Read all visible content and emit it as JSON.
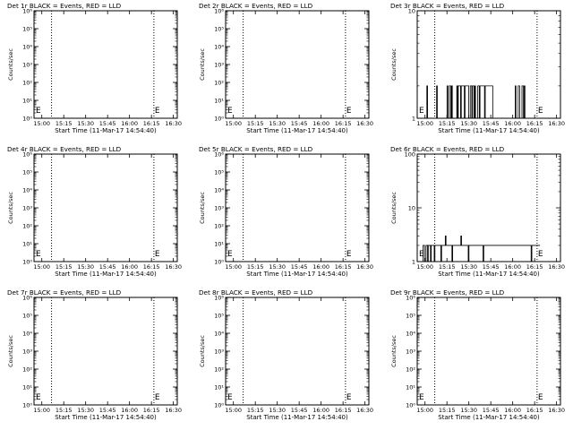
{
  "figure": {
    "xlabel": "Start Time (11-Mar-17 14:54:40)",
    "ylabel": "Counts/sec",
    "x_ticks": [
      "15:00",
      "15:15",
      "15:30",
      "15:45",
      "16:00",
      "16:15",
      "16:30"
    ],
    "x_range_minutes_from_start": [
      0,
      98
    ],
    "markers_minutes_from_start": [
      0,
      12,
      82
    ],
    "marker_text": "E"
  },
  "chart_data": [
    {
      "type": "line",
      "title": "Det 1r BLACK = Events, RED = LLD",
      "yscale": "log",
      "ylim": [
        1,
        10000
      ],
      "yticks": [
        "10⁰",
        "10¹",
        "10²",
        "10³",
        "10⁴",
        "10⁵",
        "10⁶"
      ],
      "series": [],
      "grid": false
    },
    {
      "type": "line",
      "title": "Det 2r BLACK = Events, RED = LLD",
      "yscale": "log",
      "ylim": [
        1,
        10000
      ],
      "yticks": [
        "10⁰",
        "10¹",
        "10²",
        "10³",
        "10⁴",
        "10⁵",
        "10⁶"
      ],
      "series": [],
      "grid": false
    },
    {
      "type": "line",
      "title": "Det 3r BLACK = Events, RED = LLD",
      "yscale": "log",
      "ylim": [
        1,
        10
      ],
      "yticks": [
        "1",
        "10"
      ],
      "series": [
        {
          "values_description": "events",
          "x_start_minutes": 3,
          "x_end_minutes": 86,
          "ymax": 2,
          "values": [
            1,
            1,
            1,
            1,
            1,
            1,
            1,
            2,
            1,
            1,
            1,
            1,
            1,
            1,
            1,
            1,
            1,
            1,
            1,
            1,
            2,
            1,
            1,
            1,
            1,
            1,
            1,
            1,
            1,
            1,
            1,
            1,
            1,
            1,
            2,
            1,
            1,
            2,
            2,
            1,
            2,
            1,
            1,
            1,
            1,
            1,
            1,
            2,
            1,
            2,
            2,
            2,
            1,
            2,
            2,
            2,
            2,
            1,
            2,
            2,
            2,
            2,
            2,
            1,
            1,
            2,
            2,
            1,
            2,
            2,
            1,
            2,
            1,
            1,
            1,
            2,
            2,
            1,
            2,
            2,
            2,
            2,
            2,
            2,
            1,
            2,
            2,
            2,
            2,
            2,
            2,
            2,
            2,
            2,
            2,
            1,
            1,
            1,
            1,
            1,
            1,
            1,
            1,
            1,
            1,
            1,
            1,
            1,
            1,
            1,
            1,
            1,
            1,
            1,
            1,
            1,
            1,
            1,
            1,
            1,
            1,
            1,
            1,
            1,
            1,
            2,
            1,
            1,
            1,
            2,
            2,
            1,
            1,
            1,
            2,
            2,
            1,
            2,
            1,
            1,
            1,
            1,
            1,
            1,
            1,
            1,
            1,
            1,
            1,
            1,
            1,
            1,
            1,
            1,
            1,
            1,
            1,
            1,
            1,
            1,
            1,
            1
          ]
        }
      ],
      "grid": false
    },
    {
      "type": "line",
      "title": "Det 4r BLACK = Events, RED = LLD",
      "yscale": "log",
      "ylim": [
        1,
        10000
      ],
      "yticks": [
        "10⁰",
        "10¹",
        "10²",
        "10³",
        "10⁴",
        "10⁵",
        "10⁶"
      ],
      "series": [],
      "grid": false
    },
    {
      "type": "line",
      "title": "Det 5r BLACK = Events, RED = LLD",
      "yscale": "log",
      "ylim": [
        1,
        10000
      ],
      "yticks": [
        "10⁰",
        "10¹",
        "10²",
        "10³",
        "10⁴",
        "10⁵",
        "10⁶"
      ],
      "series": [],
      "grid": false
    },
    {
      "type": "line",
      "title": "Det 6r BLACK = Events, RED = LLD",
      "yscale": "log",
      "ylim": [
        1,
        100
      ],
      "yticks": [
        "1",
        "10",
        "100"
      ],
      "series": [
        {
          "values_description": "events",
          "x_start_minutes": 3,
          "x_end_minutes": 84,
          "ymax": 3,
          "values": [
            1,
            1,
            2,
            2,
            1,
            1,
            2,
            2,
            1,
            2,
            2,
            2,
            1,
            2,
            2,
            2,
            2,
            1,
            2,
            2,
            2,
            2,
            2,
            2,
            2,
            2,
            1,
            2,
            2,
            2,
            2,
            2,
            3,
            2,
            2,
            2,
            2,
            2,
            2,
            2,
            2,
            1,
            2,
            2,
            2,
            2,
            2,
            2,
            2,
            2,
            2,
            2,
            2,
            3,
            2,
            2,
            2,
            2,
            2,
            2,
            2,
            2,
            2,
            1,
            2,
            2,
            2,
            2,
            2,
            2,
            2,
            2,
            2,
            2,
            2,
            2,
            2,
            2,
            2,
            2,
            2,
            2,
            2,
            1,
            2,
            2,
            2,
            2,
            2,
            2,
            2,
            2,
            2,
            2,
            2,
            2,
            2,
            2,
            2,
            2,
            2,
            2,
            2,
            2,
            2,
            2,
            2,
            2,
            2,
            2,
            2,
            2,
            2,
            2,
            2,
            2,
            2,
            2,
            2,
            2,
            2,
            2,
            2,
            2,
            2,
            2,
            2,
            2,
            2,
            2,
            2,
            2,
            2,
            2,
            2,
            2,
            2,
            2,
            2,
            2,
            2,
            2,
            2,
            2,
            2,
            2,
            2,
            2,
            1,
            2,
            2,
            2,
            2,
            2,
            2,
            2,
            2,
            2,
            2,
            2
          ]
        }
      ],
      "grid": false
    },
    {
      "type": "line",
      "title": "Det 7r BLACK = Events, RED = LLD",
      "yscale": "log",
      "ylim": [
        1,
        10000
      ],
      "yticks": [
        "10⁰",
        "10¹",
        "10²",
        "10³",
        "10⁴",
        "10⁵",
        "10⁶"
      ],
      "series": [],
      "grid": false
    },
    {
      "type": "line",
      "title": "Det 8r BLACK = Events, RED = LLD",
      "yscale": "log",
      "ylim": [
        1,
        10000
      ],
      "yticks": [
        "10⁰",
        "10¹",
        "10²",
        "10³",
        "10⁴",
        "10⁵",
        "10⁶"
      ],
      "series": [],
      "grid": false
    },
    {
      "type": "line",
      "title": "Det 9r BLACK = Events, RED = LLD",
      "yscale": "log",
      "ylim": [
        1,
        10000
      ],
      "yticks": [
        "10⁰",
        "10¹",
        "10²",
        "10³",
        "10⁴",
        "10⁵",
        "10⁶"
      ],
      "series": [],
      "grid": false
    }
  ]
}
